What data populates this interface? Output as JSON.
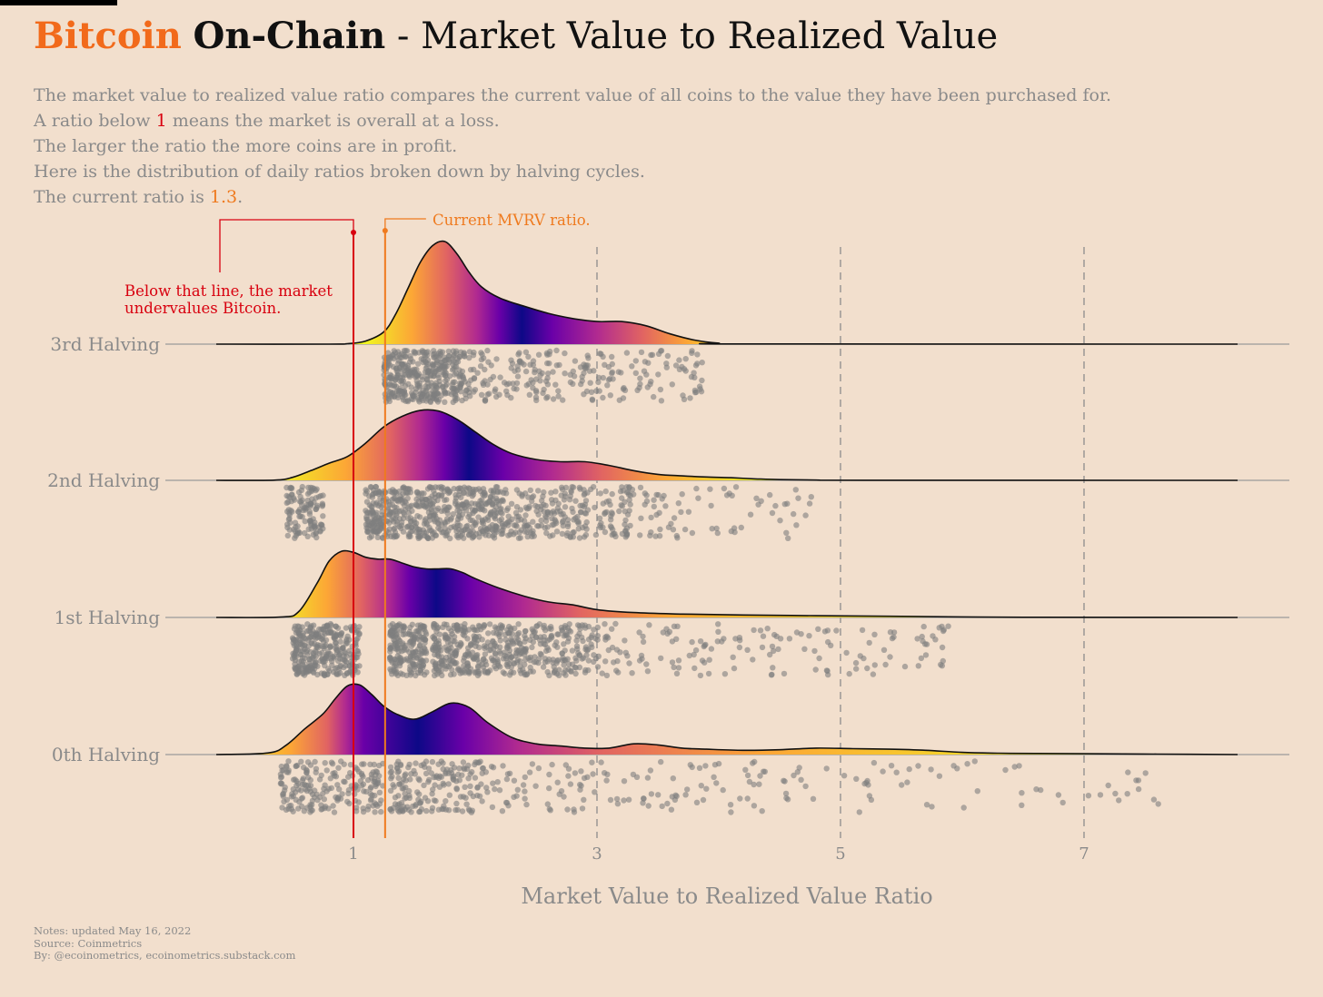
{
  "header": {
    "title_brand": "Bitcoin",
    "title_bold": "On-Chain",
    "title_rest": "- Market Value to Realized Value"
  },
  "description": {
    "line1": "The market value to realized value ratio compares the current value of all coins to the value they have been purchased for.",
    "line2_prefix": "A ratio below ",
    "line2_highlight": "1",
    "line2_suffix": " means the market is overall at a loss.",
    "line3": "The larger the ratio the more coins are in profit.",
    "line4": "Here is the distribution of daily ratios broken down by halving cycles.",
    "line5_prefix": "The current ratio is ",
    "line5_highlight": "1.3",
    "line5_suffix": "."
  },
  "annotations": {
    "current": "Current MVRV ratio.",
    "below_line1": "Below that line, the market",
    "below_line2": "undervalues Bitcoin."
  },
  "notes": {
    "line1": "Notes: updated May 16, 2022",
    "line2": "Source: Coinmetrics",
    "line3": "By: @ecoinometrics, ecoinometrics.substack.com"
  },
  "colors": {
    "background": "#f2dfcd",
    "brand_orange": "#f26a1b",
    "threshold_red": "#d8000f",
    "current_orange": "#ef7a1e",
    "points": "#7f7f7f",
    "gradient": [
      "#f0f921",
      "#fca636",
      "#e16462",
      "#b12a90",
      "#6a00a8",
      "#0d0887"
    ]
  },
  "chart_data": {
    "type": "ridgeline",
    "xlabel": "Market Value to Realized Value Ratio",
    "x_ticks": [
      1,
      3,
      5,
      7
    ],
    "xlim": [
      -0.15,
      8.3
    ],
    "grid": "vertical dashed lines at 3, 5, 7",
    "reference_lines": [
      {
        "name": "threshold",
        "x": 1.0,
        "color": "#d8000f"
      },
      {
        "name": "current",
        "x": 1.26,
        "color": "#ef7a1e"
      }
    ],
    "categories": [
      "3rd Halving",
      "2nd Halving",
      "1st Halving",
      "0th Halving"
    ],
    "series": [
      {
        "name": "3rd Halving",
        "density": [
          [
            0.0,
            0
          ],
          [
            0.8,
            0
          ],
          [
            0.95,
            0.004
          ],
          [
            1.1,
            0.03
          ],
          [
            1.25,
            0.12
          ],
          [
            1.35,
            0.3
          ],
          [
            1.45,
            0.55
          ],
          [
            1.55,
            0.8
          ],
          [
            1.65,
            0.96
          ],
          [
            1.75,
            1.0
          ],
          [
            1.85,
            0.88
          ],
          [
            1.95,
            0.7
          ],
          [
            2.05,
            0.56
          ],
          [
            2.2,
            0.45
          ],
          [
            2.4,
            0.37
          ],
          [
            2.6,
            0.3
          ],
          [
            2.8,
            0.25
          ],
          [
            3.0,
            0.22
          ],
          [
            3.2,
            0.22
          ],
          [
            3.4,
            0.18
          ],
          [
            3.6,
            0.1
          ],
          [
            3.8,
            0.04
          ],
          [
            4.0,
            0.01
          ],
          [
            4.2,
            0.002
          ],
          [
            8.2,
            0
          ]
        ],
        "points": {
          "count": 620,
          "clusters": [
            [
              1.25,
              1.9,
              0.62
            ],
            [
              1.9,
              3.0,
              0.25
            ],
            [
              3.0,
              3.9,
              0.13
            ]
          ]
        }
      },
      {
        "name": "2nd Halving",
        "density": [
          [
            0.0,
            0
          ],
          [
            0.35,
            0.003
          ],
          [
            0.5,
            0.04
          ],
          [
            0.65,
            0.13
          ],
          [
            0.8,
            0.23
          ],
          [
            0.95,
            0.32
          ],
          [
            1.1,
            0.5
          ],
          [
            1.25,
            0.72
          ],
          [
            1.4,
            0.86
          ],
          [
            1.55,
            0.94
          ],
          [
            1.7,
            0.93
          ],
          [
            1.85,
            0.82
          ],
          [
            2.0,
            0.65
          ],
          [
            2.15,
            0.48
          ],
          [
            2.3,
            0.36
          ],
          [
            2.5,
            0.28
          ],
          [
            2.7,
            0.25
          ],
          [
            2.9,
            0.25
          ],
          [
            3.1,
            0.2
          ],
          [
            3.3,
            0.13
          ],
          [
            3.5,
            0.08
          ],
          [
            3.7,
            0.06
          ],
          [
            3.9,
            0.045
          ],
          [
            4.1,
            0.035
          ],
          [
            4.3,
            0.02
          ],
          [
            4.5,
            0.01
          ],
          [
            4.8,
            0.004
          ],
          [
            5.2,
            0.001
          ],
          [
            8.2,
            0
          ]
        ],
        "points": {
          "count": 980,
          "clusters": [
            [
              0.45,
              0.75,
              0.12
            ],
            [
              1.1,
              2.2,
              0.55
            ],
            [
              2.2,
              3.3,
              0.26
            ],
            [
              3.3,
              4.8,
              0.07
            ]
          ]
        }
      },
      {
        "name": "1st Halving",
        "density": [
          [
            0.0,
            0
          ],
          [
            0.4,
            0.004
          ],
          [
            0.55,
            0.06
          ],
          [
            0.7,
            0.35
          ],
          [
            0.8,
            0.58
          ],
          [
            0.9,
            0.68
          ],
          [
            1.0,
            0.67
          ],
          [
            1.1,
            0.62
          ],
          [
            1.2,
            0.6
          ],
          [
            1.3,
            0.6
          ],
          [
            1.4,
            0.56
          ],
          [
            1.5,
            0.52
          ],
          [
            1.6,
            0.5
          ],
          [
            1.7,
            0.5
          ],
          [
            1.8,
            0.5
          ],
          [
            1.9,
            0.46
          ],
          [
            2.0,
            0.4
          ],
          [
            2.2,
            0.3
          ],
          [
            2.4,
            0.22
          ],
          [
            2.6,
            0.16
          ],
          [
            2.8,
            0.13
          ],
          [
            3.0,
            0.08
          ],
          [
            3.3,
            0.05
          ],
          [
            3.7,
            0.035
          ],
          [
            4.2,
            0.025
          ],
          [
            4.8,
            0.018
          ],
          [
            5.4,
            0.012
          ],
          [
            6.0,
            0.006
          ],
          [
            6.5,
            0.002
          ],
          [
            8.2,
            0
          ]
        ],
        "points": {
          "count": 1180,
          "clusters": [
            [
              0.5,
              1.05,
              0.28
            ],
            [
              1.3,
              1.6,
              0.17
            ],
            [
              1.65,
              2.4,
              0.28
            ],
            [
              2.4,
              3.0,
              0.14
            ],
            [
              3.0,
              5.9,
              0.13
            ]
          ]
        }
      },
      {
        "name": "0th Halving",
        "density": [
          [
            0.0,
            0
          ],
          [
            0.3,
            0.015
          ],
          [
            0.45,
            0.09
          ],
          [
            0.6,
            0.24
          ],
          [
            0.75,
            0.38
          ],
          [
            0.85,
            0.52
          ],
          [
            0.95,
            0.64
          ],
          [
            1.05,
            0.65
          ],
          [
            1.15,
            0.56
          ],
          [
            1.25,
            0.45
          ],
          [
            1.35,
            0.38
          ],
          [
            1.5,
            0.33
          ],
          [
            1.65,
            0.4
          ],
          [
            1.8,
            0.48
          ],
          [
            1.95,
            0.44
          ],
          [
            2.1,
            0.3
          ],
          [
            2.3,
            0.16
          ],
          [
            2.5,
            0.1
          ],
          [
            2.7,
            0.08
          ],
          [
            2.9,
            0.06
          ],
          [
            3.1,
            0.06
          ],
          [
            3.3,
            0.1
          ],
          [
            3.5,
            0.09
          ],
          [
            3.7,
            0.06
          ],
          [
            3.9,
            0.05
          ],
          [
            4.2,
            0.04
          ],
          [
            4.5,
            0.045
          ],
          [
            4.8,
            0.06
          ],
          [
            5.1,
            0.055
          ],
          [
            5.4,
            0.05
          ],
          [
            5.7,
            0.04
          ],
          [
            6.0,
            0.02
          ],
          [
            6.3,
            0.013
          ],
          [
            6.6,
            0.01
          ],
          [
            7.0,
            0.008
          ],
          [
            7.6,
            0.004
          ],
          [
            8.2,
            0
          ]
        ],
        "points": {
          "count": 560,
          "clusters": [
            [
              0.4,
              1.25,
              0.36
            ],
            [
              1.3,
              2.1,
              0.32
            ],
            [
              2.1,
              4.6,
              0.22
            ],
            [
              4.6,
              7.8,
              0.1
            ]
          ]
        }
      }
    ]
  }
}
